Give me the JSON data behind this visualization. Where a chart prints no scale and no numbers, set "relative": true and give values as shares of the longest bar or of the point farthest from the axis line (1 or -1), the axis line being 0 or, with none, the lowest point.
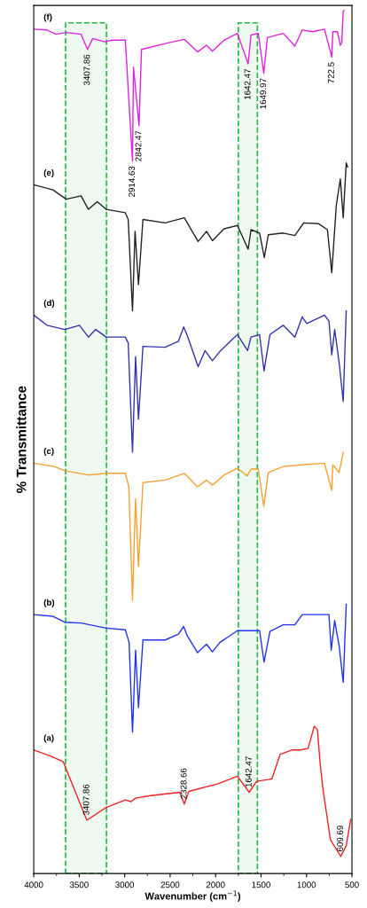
{
  "chart_data": {
    "type": "line",
    "relative": true,
    "xlabel": "Wavenumber (cm$^{−1}$)",
    "ylabel": "% Transmittance",
    "xlim": [
      4000,
      500
    ],
    "xticks": [
      4000,
      3500,
      3000,
      2500,
      2000,
      1500,
      1000,
      500
    ],
    "series": [
      {
        "name": "(f)",
        "color": "#e020e0",
        "x": [
          4000,
          3854,
          3756,
          3643,
          3480,
          3409,
          3351,
          3221,
          3140,
          2993,
          2914,
          2903,
          2842,
          2815,
          2555,
          2344,
          2198,
          2100,
          2035,
          1906,
          1760,
          1642,
          1610,
          1530,
          1470,
          1430,
          1256,
          1128,
          1047,
          932,
          802,
          722,
          710,
          660,
          628,
          612,
          596,
          586
        ],
        "values": [
          0.978,
          0.977,
          0.972,
          0.974,
          0.972,
          0.954,
          0.967,
          0.963,
          0.965,
          0.965,
          0.822,
          0.933,
          0.864,
          0.954,
          0.961,
          0.966,
          0.951,
          0.959,
          0.952,
          0.965,
          0.973,
          0.937,
          0.971,
          0.973,
          0.926,
          0.968,
          0.973,
          0.958,
          0.977,
          0.975,
          0.978,
          0.945,
          0.975,
          0.975,
          0.959,
          0.962,
          0.999,
          1.0
        ]
      },
      {
        "name": "(e)",
        "color": "#222222",
        "x": [
          4000,
          3789,
          3643,
          3480,
          3399,
          3302,
          3204,
          2993,
          2961,
          2914,
          2886,
          2848,
          2799,
          2555,
          2344,
          2192,
          2100,
          2035,
          1906,
          1760,
          1642,
          1610,
          1516,
          1464,
          1420,
          1256,
          1128,
          1031,
          867,
          770,
          722,
          672,
          628,
          596,
          563,
          548
        ],
        "values": [
          0.794,
          0.788,
          0.777,
          0.781,
          0.765,
          0.774,
          0.765,
          0.761,
          0.753,
          0.645,
          0.739,
          0.676,
          0.753,
          0.749,
          0.755,
          0.727,
          0.739,
          0.728,
          0.742,
          0.746,
          0.718,
          0.741,
          0.737,
          0.708,
          0.735,
          0.737,
          0.734,
          0.749,
          0.748,
          0.741,
          0.69,
          0.77,
          0.801,
          0.755,
          0.82,
          0.815
        ]
      },
      {
        "name": "(d)",
        "color": "#3333aa",
        "x": [
          4000,
          3854,
          3659,
          3497,
          3399,
          3318,
          3204,
          2993,
          2961,
          2914,
          2880,
          2848,
          2799,
          2555,
          2409,
          2351,
          2312,
          2192,
          2116,
          2035,
          1954,
          1760,
          1648,
          1610,
          1516,
          1467,
          1402,
          1256,
          1128,
          1047,
          997,
          802,
          753,
          722,
          690,
          641,
          596,
          563
        ],
        "values": [
          0.64,
          0.628,
          0.623,
          0.628,
          0.614,
          0.623,
          0.614,
          0.614,
          0.607,
          0.478,
          0.591,
          0.517,
          0.603,
          0.602,
          0.609,
          0.626,
          0.616,
          0.579,
          0.598,
          0.586,
          0.597,
          0.617,
          0.598,
          0.614,
          0.617,
          0.574,
          0.617,
          0.628,
          0.614,
          0.638,
          0.63,
          0.64,
          0.633,
          0.593,
          0.623,
          0.584,
          0.538,
          0.645
        ]
      },
      {
        "name": "(c)",
        "color": "#f5a030",
        "x": [
          4000,
          3773,
          3659,
          3399,
          3204,
          2993,
          2954,
          2914,
          2880,
          2848,
          2799,
          2555,
          2344,
          2198,
          2100,
          2035,
          1906,
          1760,
          1652,
          1610,
          1530,
          1470,
          1420,
          1256,
          1063,
          802,
          722,
          710,
          641,
          596
        ],
        "values": [
          0.465,
          0.461,
          0.456,
          0.451,
          0.453,
          0.453,
          0.437,
          0.303,
          0.423,
          0.343,
          0.442,
          0.445,
          0.453,
          0.437,
          0.445,
          0.439,
          0.451,
          0.459,
          0.45,
          0.458,
          0.458,
          0.414,
          0.454,
          0.461,
          0.463,
          0.465,
          0.433,
          0.463,
          0.454,
          0.478
        ]
      },
      {
        "name": "(b)",
        "color": "#2233ee",
        "x": [
          4000,
          3789,
          3659,
          3480,
          3204,
          2993,
          2951,
          2914,
          2880,
          2848,
          2799,
          2555,
          2409,
          2351,
          2312,
          2198,
          2100,
          2035,
          1954,
          1760,
          1610,
          1516,
          1467,
          1402,
          1256,
          1128,
          1047,
          932,
          753,
          728,
          690,
          641,
          596,
          563
        ],
        "values": [
          0.286,
          0.284,
          0.277,
          0.276,
          0.27,
          0.268,
          0.253,
          0.147,
          0.244,
          0.176,
          0.256,
          0.256,
          0.263,
          0.272,
          0.261,
          0.241,
          0.251,
          0.242,
          0.253,
          0.267,
          0.267,
          0.267,
          0.23,
          0.266,
          0.274,
          0.274,
          0.286,
          0.286,
          0.286,
          0.244,
          0.279,
          0.249,
          0.206,
          0.298
        ]
      },
      {
        "name": "(a)",
        "color": "#ee2222",
        "x": [
          4000,
          3821,
          3675,
          3578,
          3416,
          3204,
          2993,
          2929,
          2880,
          2717,
          2393,
          2344,
          2295,
          1971,
          1760,
          1630,
          1549,
          1419,
          1380,
          1289,
          1160,
          1063,
          982,
          915,
          880,
          850,
          818,
          737,
          623,
          563,
          514
        ],
        "values": [
          0.126,
          0.119,
          0.112,
          0.086,
          0.043,
          0.058,
          0.067,
          0.065,
          0.069,
          0.072,
          0.076,
          0.062,
          0.077,
          0.086,
          0.095,
          0.076,
          0.089,
          0.091,
          0.092,
          0.121,
          0.126,
          0.126,
          0.128,
          0.154,
          0.15,
          0.11,
          0.079,
          0.02,
          0.0,
          0.013,
          0.044
        ]
      }
    ],
    "annotations": [
      {
        "text": "3407.86",
        "x": 3409,
        "y": 0.954
      },
      {
        "text": "2914.63",
        "x": 2914,
        "y": 0.822
      },
      {
        "text": "2842.47",
        "x": 2842,
        "y": 0.864
      },
      {
        "text": "1642.47",
        "x": 1642,
        "y": 0.937
      },
      {
        "text": "1649.97",
        "x": 1470,
        "y": 0.926
      },
      {
        "text": "722.5",
        "x": 722,
        "y": 0.945
      },
      {
        "text": "3407.86",
        "x": 3416,
        "y": 0.043
      },
      {
        "text": "2328.66",
        "x": 2344,
        "y": 0.062
      },
      {
        "text": "1642.47",
        "x": 1630,
        "y": 0.076
      },
      {
        "text": "609.69",
        "x": 623,
        "y": 0.0
      }
    ],
    "bands": [
      {
        "axis": "x",
        "from": 3650,
        "to": 3200,
        "color": "#22bb44"
      },
      {
        "axis": "x",
        "from": 1750,
        "to": 1540,
        "color": "#22bb44"
      }
    ]
  }
}
